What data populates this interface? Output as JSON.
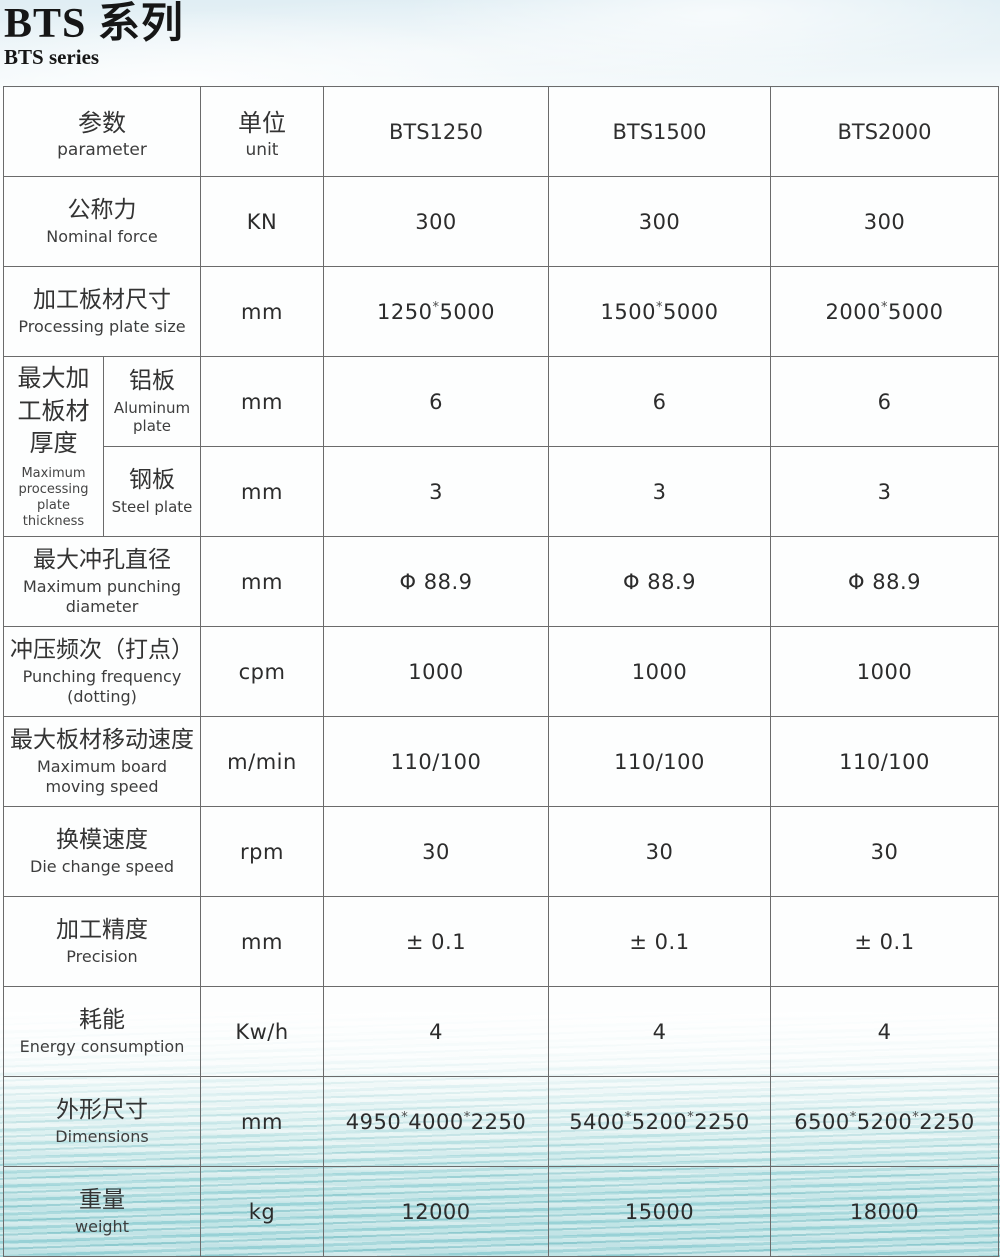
{
  "page": {
    "title_zh": "BTS 系列",
    "title_en": "BTS series"
  },
  "colors": {
    "water_teal": "#a3d5d8",
    "sky_blue": "#e9f3f7",
    "table_border": "#6b6b6b",
    "text": "#333333"
  },
  "table": {
    "header": {
      "param_zh": "参数",
      "param_en": "parameter",
      "unit_zh": "单位",
      "unit_en": "unit",
      "models": [
        "BTS1250",
        "BTS1500",
        "BTS2000"
      ]
    },
    "rows": [
      {
        "zh": "公称力",
        "en": "Nominal force",
        "unit": "KN",
        "values": [
          "300",
          "300",
          "300"
        ]
      },
      {
        "zh": "加工板材尺寸",
        "en": "Processing plate size",
        "unit": "mm",
        "values": [
          "1250*5000",
          "1500*5000",
          "2000*5000"
        ]
      },
      {
        "zh": "最大冲孔直径",
        "en": "Maximum punching diameter",
        "unit": "mm",
        "values": [
          "Φ 88.9",
          "Φ 88.9",
          "Φ 88.9"
        ]
      },
      {
        "zh": "冲压频次（打点）",
        "en": "Punching frequency (dotting)",
        "unit": "cpm",
        "values": [
          "1000",
          "1000",
          "1000"
        ]
      },
      {
        "zh": "最大板材移动速度",
        "en": "Maximum board moving speed",
        "unit": "m/min",
        "values": [
          "110/100",
          "110/100",
          "110/100"
        ]
      },
      {
        "zh": "换模速度",
        "en": "Die change speed",
        "unit": "rpm",
        "values": [
          "30",
          "30",
          "30"
        ]
      },
      {
        "zh": "加工精度",
        "en": "Precision",
        "unit": "mm",
        "values": [
          "± 0.1",
          "± 0.1",
          "± 0.1"
        ]
      },
      {
        "zh": "耗能",
        "en": "Energy consumption",
        "unit": "Kw/h",
        "values": [
          "4",
          "4",
          "4"
        ]
      },
      {
        "zh": "外形尺寸",
        "en": "Dimensions",
        "unit": "mm",
        "values": [
          "4950*4000*2250",
          "5400*5200*2250",
          "6500*5200*2250"
        ]
      },
      {
        "zh": "重量",
        "en": "weight",
        "unit": "kg",
        "values": [
          "12000",
          "15000",
          "18000"
        ]
      }
    ],
    "thickness_group": {
      "zh": "最大加工板材厚度",
      "en": "Maximum processing plate thickness",
      "subrows": [
        {
          "zh": "铝板",
          "en": "Aluminum plate",
          "unit": "mm",
          "values": [
            "6",
            "6",
            "6"
          ]
        },
        {
          "zh": "钢板",
          "en": "Steel plate",
          "unit": "mm",
          "values": [
            "3",
            "3",
            "3"
          ]
        }
      ]
    }
  }
}
